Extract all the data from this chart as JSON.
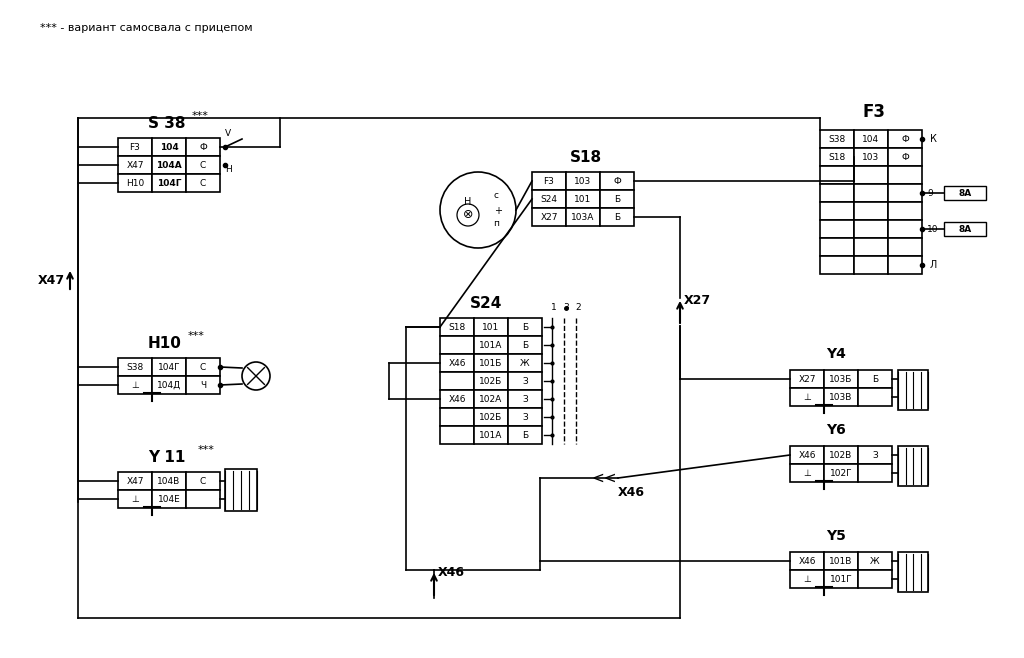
{
  "bg_color": "#ffffff",
  "title_note": "*** - вариант самосвала с прицепом",
  "rows_s38": [
    [
      "F3",
      "104",
      "Ф"
    ],
    [
      "X47",
      "104A",
      "С"
    ],
    [
      "H10",
      "104Г",
      "С"
    ]
  ],
  "rows_h10": [
    [
      "S38",
      "104Г",
      "С"
    ],
    [
      "⊥",
      "104Д",
      "Ч"
    ]
  ],
  "rows_y11": [
    [
      "X47",
      "104В",
      "С"
    ],
    [
      "⊥",
      "104Е",
      ""
    ]
  ],
  "rows_s18": [
    [
      "F3",
      "103",
      "Ф"
    ],
    [
      "S24",
      "101",
      "Б"
    ],
    [
      "X27",
      "103A",
      "Б"
    ]
  ],
  "rows_s24": [
    [
      "S18",
      "101",
      "Б"
    ],
    [
      "",
      "101A",
      "Б"
    ],
    [
      "X46",
      "101Б",
      "Ж"
    ],
    [
      "",
      "102Б",
      "З"
    ],
    [
      "X46",
      "102A",
      "З"
    ],
    [
      "",
      "102Б",
      "З"
    ],
    [
      "",
      "101A",
      "Б"
    ]
  ],
  "rows_f3_hdr": [
    [
      "S38",
      "104",
      "Ф"
    ],
    [
      "S18",
      "103",
      "Ф"
    ]
  ],
  "rows_y4": [
    [
      "X27",
      "103Б",
      "Б"
    ],
    [
      "⊥",
      "103В",
      ""
    ]
  ],
  "rows_y6": [
    [
      "X46",
      "102В",
      "З"
    ],
    [
      "⊥",
      "102Г",
      ""
    ]
  ],
  "rows_y5": [
    [
      "X46",
      "101В",
      "Ж"
    ],
    [
      "⊥",
      "101Г",
      ""
    ]
  ]
}
